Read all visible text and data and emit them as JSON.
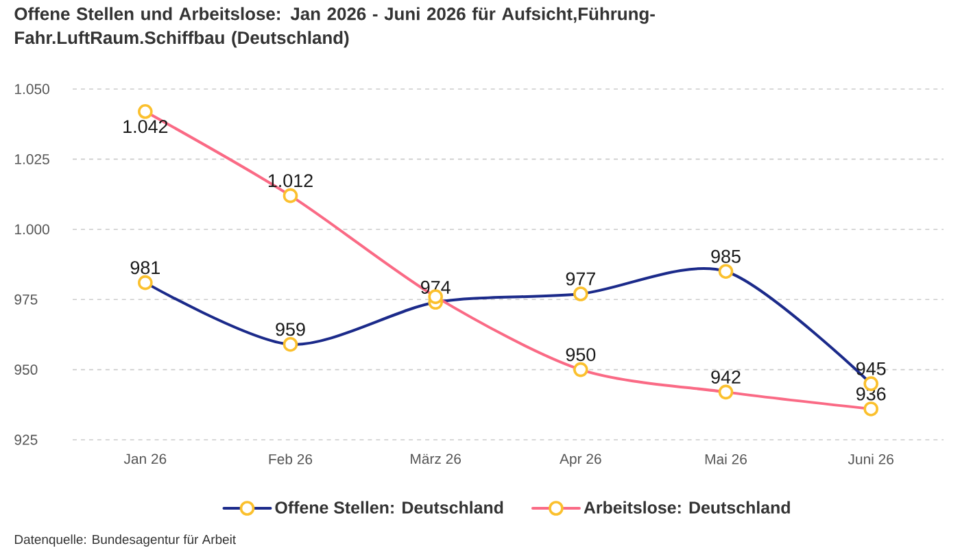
{
  "chart_data": {
    "type": "line",
    "title": "Offene Stellen und Arbeitslose: Jan 2026 - Juni 2026 für Aufsicht,Führung-Fahr.LuftRaum.Schiffbau (Deutschland)",
    "categories": [
      "Jan 26",
      "Feb 26",
      "März 26",
      "Apr 26",
      "Mai 26",
      "Juni 26"
    ],
    "series": [
      {
        "name": "Offene Stellen: Deutschland",
        "color": "#1b2a8a",
        "values": [
          981,
          959,
          974,
          977,
          985,
          945
        ],
        "value_labels": [
          "981",
          "959",
          "974",
          "977",
          "985",
          "945"
        ]
      },
      {
        "name": "Arbeitslose: Deutschland",
        "color": "#fa6a85",
        "values": [
          1042,
          1012,
          976,
          950,
          942,
          936
        ],
        "value_labels": [
          "1.042",
          "1.012",
          null,
          "950",
          "942",
          "936"
        ]
      }
    ],
    "ylim": [
      925,
      1050
    ],
    "yticks": [
      925,
      950,
      975,
      {
        "value": 1000,
        "label": "1.000"
      },
      {
        "value": 1025,
        "label": "1.025"
      },
      {
        "value": 1050,
        "label": "1.050"
      }
    ],
    "grid": "y",
    "legend": "bottom",
    "marker": "circle",
    "annotations": [
      "Datenquelle: Bundesagentur für Arbeit"
    ]
  }
}
